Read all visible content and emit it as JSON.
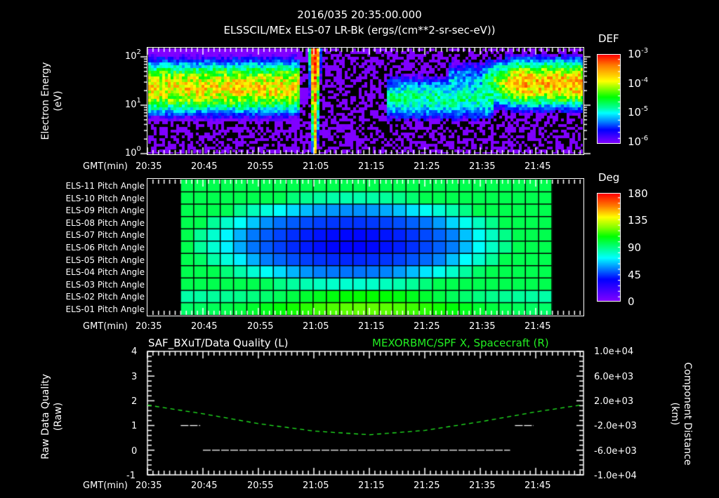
{
  "header": {
    "timestamp": "2016/035 20:35:00.000",
    "subtitle": "ELSSCIL/MEx ELS-07 LR-Bk  (ergs/(cm**2-sr-sec-eV))"
  },
  "time_axis": {
    "label": "GMT(min)",
    "ticks": [
      "20:35",
      "20:45",
      "20:55",
      "21:05",
      "21:15",
      "21:25",
      "21:35",
      "21:45"
    ]
  },
  "panel1": {
    "ylabel_line1": "Electron Energy",
    "ylabel_line2": "(eV)",
    "yticks": [
      {
        "base": "10",
        "exp": "2"
      },
      {
        "base": "10",
        "exp": "1"
      },
      {
        "base": "10",
        "exp": "0"
      }
    ],
    "colorbar": {
      "title": "DEF",
      "labels": [
        {
          "base": "10",
          "exp": "-3"
        },
        {
          "base": "10",
          "exp": "-4"
        },
        {
          "base": "10",
          "exp": "-5"
        },
        {
          "base": "10",
          "exp": "-6"
        }
      ]
    }
  },
  "panel2": {
    "row_labels": [
      "ELS-11 Pitch Angle",
      "ELS-10 Pitch Angle",
      "ELS-09 Pitch Angle",
      "ELS-08 Pitch Angle",
      "ELS-07 Pitch Angle",
      "ELS-06 Pitch Angle",
      "ELS-05 Pitch Angle",
      "ELS-04 Pitch Angle",
      "ELS-03 Pitch Angle",
      "ELS-02 Pitch Angle",
      "ELS-01 Pitch Angle"
    ],
    "colorbar": {
      "title": "Deg",
      "labels": [
        "180",
        "135",
        "90",
        "45",
        "0"
      ]
    }
  },
  "panel3": {
    "left_title": "SAF_BXuT/Data Quality (L)",
    "right_title": "MEXORBMC/SPF X, Spacecraft (R)",
    "ylabel_left_line1": "Raw Data Quality",
    "ylabel_left_line2": "(Raw)",
    "ylabel_right_line1": "Component Distance",
    "ylabel_right_line2": "(km)",
    "left_ticks": [
      "4",
      "3",
      "2",
      "1",
      "0",
      "-1"
    ],
    "right_ticks": [
      "1.0e+04",
      "6.0e+03",
      "2.0e+03",
      "-2.0e+03",
      "-6.0e+03",
      "-1.0e+04"
    ]
  },
  "colors": {
    "background": "#000000",
    "axes": "#ffffff",
    "spacecraft_x_line": "#22ee22",
    "data_quality_line": "#ffffff"
  },
  "chart_data": [
    {
      "type": "heatmap",
      "title": "ELSSCIL/MEx ELS-07 LR-Bk (ergs/(cm**2-sr-sec-eV))",
      "xlabel": "GMT(min)",
      "ylabel": "Electron Energy (eV)",
      "x_range": [
        "20:35",
        "21:53"
      ],
      "y_scale": "log",
      "ylim": [
        1,
        150
      ],
      "colorbar": {
        "label": "DEF",
        "scale": "log",
        "range": [
          1e-06,
          0.001
        ]
      },
      "features": [
        {
          "time_range": [
            "20:35",
            "21:02"
          ],
          "energy_peak_eV": 25,
          "log_def_peak": -3.7,
          "description": "broad green/yellow band 10-100 eV"
        },
        {
          "time_range": [
            "21:04",
            "21:05"
          ],
          "energy_peak_eV": 100,
          "log_def_peak": -3.0,
          "description": "narrow intense vertical spike (red) extending from 1 to 150 eV"
        },
        {
          "time_range": [
            "21:05",
            "21:18"
          ],
          "log_def_peak": -5.8,
          "description": "low flux, mostly blue/black noise"
        },
        {
          "time_range": [
            "21:18",
            "21:37"
          ],
          "energy_peak_eV": 15,
          "log_def_peak": -4.6,
          "description": "moderate cyan band"
        },
        {
          "time_range": [
            "21:37",
            "21:53"
          ],
          "energy_peak_eV": 30,
          "log_def_peak": -3.6,
          "description": "green/yellow band"
        }
      ]
    },
    {
      "type": "heatmap",
      "title": "Pitch Angle",
      "xlabel": "GMT(min)",
      "categories": [
        "ELS-11",
        "ELS-10",
        "ELS-09",
        "ELS-08",
        "ELS-07",
        "ELS-06",
        "ELS-05",
        "ELS-04",
        "ELS-03",
        "ELS-02",
        "ELS-01"
      ],
      "x_range": [
        "20:41",
        "21:48"
      ],
      "colorbar": {
        "label": "Deg",
        "range": [
          0,
          180
        ]
      },
      "grid_columns": 28,
      "min_value_deg": 25,
      "min_location": {
        "time": "21:15",
        "sensor": "ELS-07"
      },
      "edge_values_deg": {
        "ELS-11": 100,
        "ELS-01": 85,
        "ELS-01_at_21:15": 115
      }
    },
    {
      "type": "line",
      "title": "SAF_BXuT/Data Quality (L) & MEXORBMC/SPF X, Spacecraft (R)",
      "xlabel": "GMT(min)",
      "series": [
        {
          "name": "Data Quality (L)",
          "axis": "left",
          "ylim": [
            -1,
            4
          ],
          "points": [
            [
              "20:41",
              1
            ],
            [
              "20:44",
              1
            ],
            [
              "20:45",
              0
            ],
            [
              "21:40",
              0
            ],
            [
              "21:41",
              1
            ],
            [
              "21:45",
              1
            ]
          ]
        },
        {
          "name": "SPF X, Spacecraft (R)",
          "axis": "right",
          "ylim": [
            -10000,
            10000
          ],
          "points": [
            [
              "20:35",
              1300
            ],
            [
              "20:45",
              -100
            ],
            [
              "20:55",
              -1700
            ],
            [
              "21:05",
              -2900
            ],
            [
              "21:15",
              -3500
            ],
            [
              "21:25",
              -2800
            ],
            [
              "21:35",
              -1400
            ],
            [
              "21:45",
              200
            ],
            [
              "21:53",
              1300
            ]
          ]
        }
      ]
    }
  ]
}
